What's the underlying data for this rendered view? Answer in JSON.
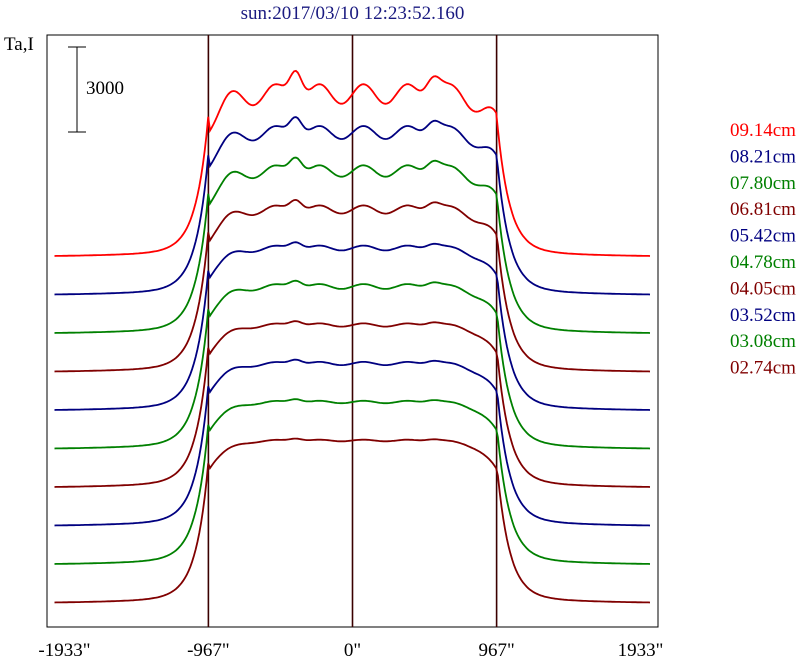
{
  "chart_data": {
    "type": "line",
    "title": "sun:2017/03/10 12:23:52.160",
    "ylabel": "Ta,I",
    "xlabel": "",
    "xlim": [
      -2050,
      2050
    ],
    "x_ticks": [
      {
        "value": -1933,
        "label": "-1933\""
      },
      {
        "value": -967,
        "label": "-967\""
      },
      {
        "value": 0,
        "label": "0\""
      },
      {
        "value": 967,
        "label": "967\""
      },
      {
        "value": 1933,
        "label": "1933\""
      }
    ],
    "vertical_lines": [
      -967,
      0,
      967
    ],
    "grid": false,
    "scale_bar": {
      "value": 3000,
      "label": "3000"
    },
    "legend_position": "right",
    "limb_intensity": 6000,
    "series": [
      {
        "name": "09.14cm",
        "color": "#ff0000",
        "offset": 1,
        "limb_step": 1,
        "bump": 1200
      },
      {
        "name": "08.21cm",
        "color": "#000080",
        "offset": 0.85,
        "limb_step": 1,
        "bump": 800
      },
      {
        "name": "07.80cm",
        "color": "#008000",
        "offset": 0.7,
        "limb_step": 1,
        "bump": 700
      },
      {
        "name": "06.81cm",
        "color": "#800000",
        "offset": 0.55,
        "limb_step": 1,
        "bump": 500
      },
      {
        "name": "05.42cm",
        "color": "#000080",
        "offset": 0.4,
        "limb_step": 1,
        "bump": 300
      },
      {
        "name": "04.78cm",
        "color": "#008000",
        "offset": 0.25,
        "limb_step": 1,
        "bump": 300
      },
      {
        "name": "04.05cm",
        "color": "#800000",
        "offset": 0.1,
        "limb_step": 1,
        "bump": 200
      },
      {
        "name": "03.52cm",
        "color": "#000080",
        "offset": -0.05,
        "limb_step": 1,
        "bump": 200
      },
      {
        "name": "03.08cm",
        "color": "#008000",
        "offset": -0.2,
        "limb_step": 1,
        "bump": 150
      },
      {
        "name": "02.74cm",
        "color": "#800000",
        "offset": -0.35,
        "limb_step": 1,
        "bump": 100
      }
    ]
  }
}
